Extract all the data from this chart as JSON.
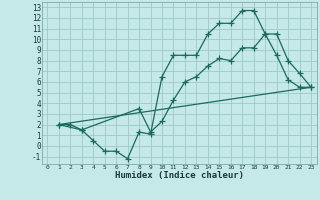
{
  "xlabel": "Humidex (Indice chaleur)",
  "bg_color": "#c5e8e8",
  "grid_color": "#a0c8c8",
  "line_color": "#1a6b5a",
  "xlim": [
    -0.5,
    23.5
  ],
  "ylim": [
    -1.7,
    13.5
  ],
  "xticks": [
    0,
    1,
    2,
    3,
    4,
    5,
    6,
    7,
    8,
    9,
    10,
    11,
    12,
    13,
    14,
    15,
    16,
    17,
    18,
    19,
    20,
    21,
    22,
    23
  ],
  "yticks": [
    -1,
    0,
    1,
    2,
    3,
    4,
    5,
    6,
    7,
    8,
    9,
    10,
    11,
    12,
    13
  ],
  "curve1_x": [
    1,
    2,
    3,
    4,
    5,
    6,
    7,
    8,
    9,
    10,
    11,
    12,
    13,
    14,
    15,
    16,
    17,
    18,
    19,
    20,
    21,
    22,
    23
  ],
  "curve1_y": [
    2,
    2,
    1.5,
    0.5,
    -0.5,
    -0.5,
    -1.2,
    1.3,
    1.1,
    6.5,
    8.5,
    8.5,
    8.5,
    10.5,
    11.5,
    11.5,
    12.7,
    12.7,
    10.5,
    8.5,
    6.2,
    5.5,
    5.5
  ],
  "curve2_x": [
    1,
    3,
    8,
    9,
    10,
    11,
    12,
    13,
    14,
    15,
    16,
    17,
    18,
    19,
    20,
    21,
    22,
    23
  ],
  "curve2_y": [
    2,
    1.5,
    3.5,
    1.3,
    2.3,
    4.3,
    6,
    6.5,
    7.5,
    8.2,
    8,
    9.2,
    9.2,
    10.5,
    10.5,
    8.0,
    6.8,
    5.5
  ],
  "curve3_x": [
    1,
    23
  ],
  "curve3_y": [
    2,
    5.5
  ]
}
